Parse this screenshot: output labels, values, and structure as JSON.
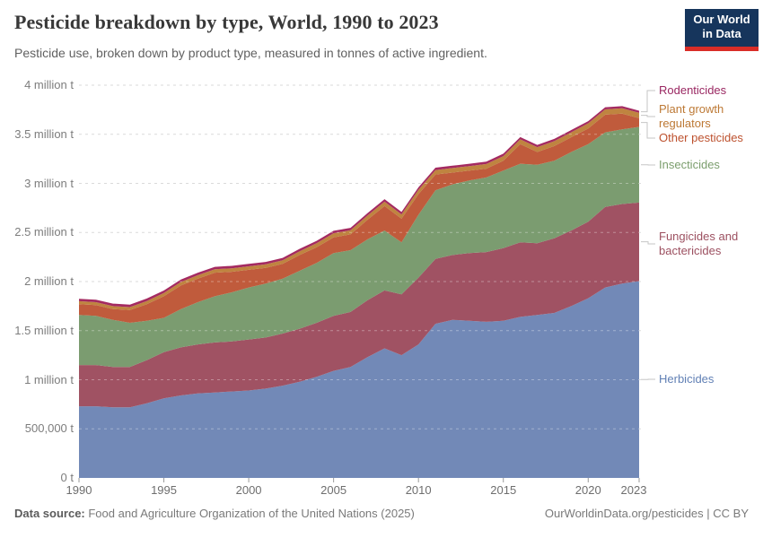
{
  "header": {
    "title": "Pesticide breakdown by type, World, 1990 to 2023",
    "subtitle": "Pesticide use, broken down by product type, measured in tonnes of active ingredient.",
    "logo": {
      "line1": "Our World",
      "line2": "in Data",
      "bg_color": "#16355c",
      "bar_color": "#d92d27"
    }
  },
  "footer": {
    "source_label": "Data source:",
    "source_text": " Food and Agriculture Organization of the United Nations (2025)",
    "credit": "OurWorldinData.org/pesticides | CC BY"
  },
  "chart_data": {
    "type": "area",
    "stacked": true,
    "title": "Pesticide breakdown by type, World, 1990 to 2023",
    "unit": "tonnes",
    "grid": "dashed",
    "legend_position": "right",
    "ylim": [
      0,
      4000000
    ],
    "x": [
      1990,
      1991,
      1992,
      1993,
      1994,
      1995,
      1996,
      1997,
      1998,
      1999,
      2000,
      2001,
      2002,
      2003,
      2004,
      2005,
      2006,
      2007,
      2008,
      2009,
      2010,
      2011,
      2012,
      2013,
      2014,
      2015,
      2016,
      2017,
      2018,
      2019,
      2020,
      2021,
      2022,
      2023
    ],
    "x_ticks": [
      1990,
      1995,
      2000,
      2005,
      2010,
      2015,
      2020,
      2023
    ],
    "y_ticks": [
      {
        "value": 0,
        "label": "0 t"
      },
      {
        "value": 500000,
        "label": "500,000 t"
      },
      {
        "value": 1000000,
        "label": "1 million t"
      },
      {
        "value": 1500000,
        "label": "1.5 million t"
      },
      {
        "value": 2000000,
        "label": "2 million t"
      },
      {
        "value": 2500000,
        "label": "2.5 million t"
      },
      {
        "value": 3000000,
        "label": "3 million t"
      },
      {
        "value": 3500000,
        "label": "3.5 million t"
      },
      {
        "value": 4000000,
        "label": "4 million t"
      }
    ],
    "series": [
      {
        "name": "Herbicides",
        "color": "#7289b7",
        "label_color": "#6180b5",
        "values": [
          730000,
          730000,
          720000,
          720000,
          760000,
          810000,
          840000,
          860000,
          870000,
          880000,
          890000,
          910000,
          940000,
          980000,
          1030000,
          1090000,
          1130000,
          1230000,
          1320000,
          1250000,
          1360000,
          1570000,
          1610000,
          1600000,
          1590000,
          1600000,
          1640000,
          1660000,
          1680000,
          1750000,
          1830000,
          1940000,
          1980000,
          2005000
        ]
      },
      {
        "name": "Fungicides and bactericides",
        "color": "#a05263",
        "label_color": "#9c5060",
        "values": [
          420000,
          420000,
          410000,
          410000,
          440000,
          470000,
          490000,
          500000,
          510000,
          510000,
          520000,
          520000,
          530000,
          540000,
          550000,
          560000,
          560000,
          580000,
          590000,
          620000,
          680000,
          660000,
          660000,
          690000,
          710000,
          740000,
          760000,
          730000,
          760000,
          770000,
          780000,
          820000,
          810000,
          800000
        ]
      },
      {
        "name": "Insecticides",
        "color": "#7b9c70",
        "label_color": "#7b9e6d",
        "values": [
          510000,
          500000,
          480000,
          450000,
          400000,
          350000,
          390000,
          430000,
          470000,
          500000,
          530000,
          550000,
          560000,
          590000,
          610000,
          640000,
          630000,
          620000,
          610000,
          530000,
          640000,
          700000,
          720000,
          740000,
          760000,
          790000,
          800000,
          800000,
          790000,
          800000,
          790000,
          760000,
          760000,
          770000
        ]
      },
      {
        "name": "Other pesticides",
        "color": "#c05b3c",
        "label_color": "#bd512e",
        "values": [
          110000,
          110000,
          110000,
          130000,
          170000,
          220000,
          240000,
          240000,
          240000,
          210000,
          180000,
          160000,
          150000,
          160000,
          160000,
          160000,
          160000,
          200000,
          250000,
          240000,
          210000,
          160000,
          120000,
          100000,
          90000,
          100000,
          200000,
          130000,
          150000,
          150000,
          160000,
          180000,
          160000,
          90000
        ]
      },
      {
        "name": "Plant growth regulators",
        "color": "#bf8440",
        "label_color": "#bd7935",
        "values": [
          30000,
          30000,
          30000,
          30000,
          32000,
          34000,
          35000,
          35000,
          35000,
          35000,
          35000,
          35000,
          36000,
          38000,
          40000,
          42000,
          42000,
          43000,
          44000,
          44000,
          45000,
          45000,
          46000,
          46000,
          47000,
          48000,
          48000,
          49000,
          50000,
          51000,
          52000,
          53000,
          55000,
          55000
        ]
      },
      {
        "name": "Rodenticides",
        "color": "#a42a60",
        "label_color": "#9a2862",
        "values": [
          25000,
          25000,
          25000,
          25000,
          25000,
          25000,
          25000,
          25000,
          25000,
          25000,
          25000,
          25000,
          25000,
          25000,
          25000,
          25000,
          25000,
          25000,
          25000,
          25000,
          25000,
          25000,
          24000,
          24000,
          24000,
          24000,
          23000,
          23000,
          23000,
          22000,
          22000,
          22000,
          21000,
          20000
        ]
      }
    ]
  }
}
